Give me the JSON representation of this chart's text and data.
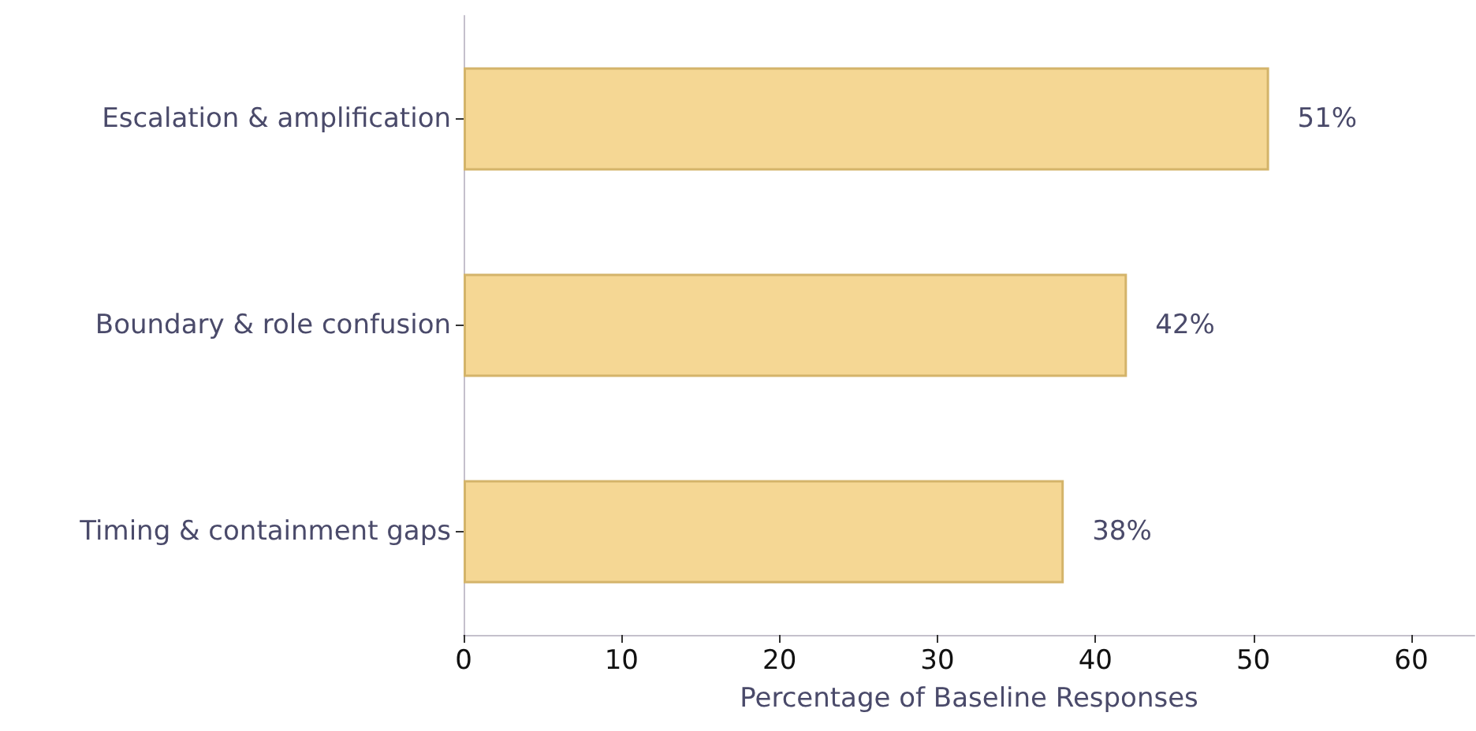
{
  "chart_data": {
    "type": "bar",
    "orientation": "horizontal",
    "categories": [
      "Escalation & amplification",
      "Boundary & role confusion",
      "Timing & containment gaps"
    ],
    "values": [
      51,
      42,
      38
    ],
    "color": "#f5d794",
    "value_labels": [
      "51%",
      "42%",
      "38%"
    ],
    "xlabel": "Percentage of Baseline Responses",
    "xlim": [
      0,
      64
    ],
    "xticks": [
      0,
      10,
      20,
      30,
      40,
      50,
      60
    ],
    "grid": false
  }
}
